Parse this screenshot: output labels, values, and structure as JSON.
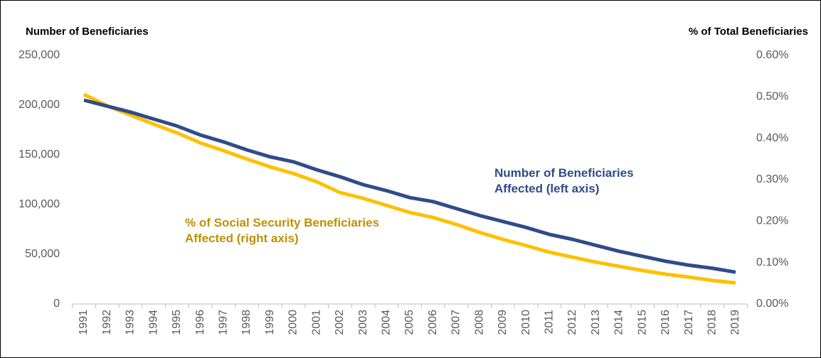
{
  "chart_data": {
    "type": "line",
    "y_axis_title": "Number of  Beneficiaries",
    "y2_axis_title": "% of Total Beneficiaries",
    "categories": [
      "1991",
      "1992",
      "1993",
      "1994",
      "1995",
      "1996",
      "1997",
      "1998",
      "1999",
      "2000",
      "2001",
      "2002",
      "2003",
      "2004",
      "2005",
      "2006",
      "2007",
      "2008",
      "2009",
      "2010",
      "2011",
      "2012",
      "2013",
      "2014",
      "2015",
      "2016",
      "2017",
      "2018",
      "2019"
    ],
    "series": [
      {
        "name": "Number of Beneficiaries Affected (left axis)",
        "color": "#2f4b8a",
        "values": [
          205000,
          199000,
          193000,
          186000,
          179000,
          170000,
          163000,
          155000,
          148000,
          143000,
          135000,
          128000,
          120000,
          114000,
          107000,
          103000,
          96000,
          89000,
          83000,
          77000,
          70000,
          65000,
          59000,
          53000,
          48000,
          43000,
          39000,
          36000,
          32000
        ]
      },
      {
        "name": "% of Social Security Beneficiaries Affected (right axis)",
        "color": "#ffc000",
        "axis": "y2",
        "values": [
          0.506,
          0.478,
          0.456,
          0.434,
          0.413,
          0.389,
          0.37,
          0.35,
          0.331,
          0.315,
          0.295,
          0.269,
          0.255,
          0.238,
          0.221,
          0.209,
          0.192,
          0.173,
          0.156,
          0.141,
          0.125,
          0.113,
          0.101,
          0.091,
          0.081,
          0.072,
          0.065,
          0.057,
          0.051
        ]
      }
    ],
    "ylim": [
      0,
      250000
    ],
    "yticks": [
      0,
      {
        "value": 50000,
        "label": "50,000"
      },
      {
        "value": 100000,
        "label": "100,000"
      },
      {
        "value": 150000,
        "label": "150,000"
      },
      {
        "value": 200000,
        "label": "200,000"
      },
      {
        "value": 250000,
        "label": "250,000"
      }
    ],
    "y2lim": [
      0,
      0.6
    ],
    "y2ticks": [
      {
        "value": 0,
        "label": "0.00%"
      },
      {
        "value": 0.1,
        "label": "0.10%"
      },
      {
        "value": 0.2,
        "label": "0.20%"
      },
      {
        "value": 0.3,
        "label": "0.30%"
      },
      {
        "value": 0.4,
        "label": "0.40%"
      },
      {
        "value": 0.5,
        "label": "0.50%"
      },
      {
        "value": 0.6,
        "label": "0.60%"
      }
    ],
    "grid": false
  }
}
